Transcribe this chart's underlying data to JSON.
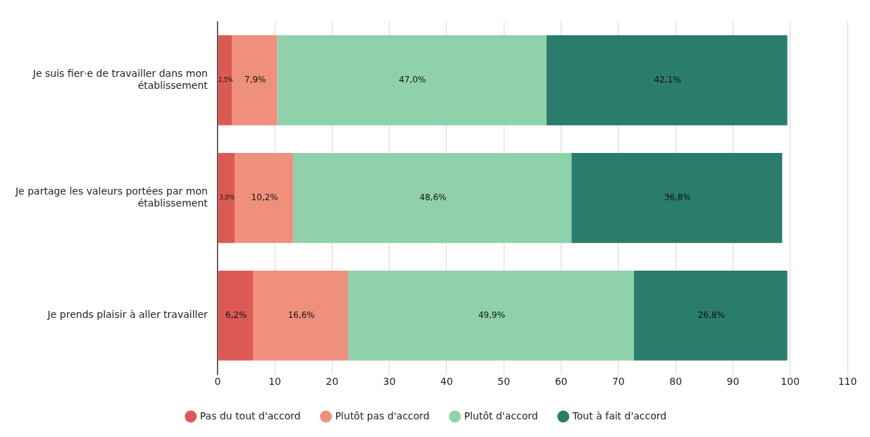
{
  "chart_data": {
    "type": "bar",
    "orientation": "horizontal",
    "stacked": true,
    "categories": [
      "Je suis fier·e de travailler dans mon établissement",
      "Je partage les valeurs portées par mon établissement",
      "Je prends plaisir à aller travailler"
    ],
    "series": [
      {
        "name": "Pas du tout d'accord",
        "color": "#db5a55",
        "values": [
          2.5,
          3.0,
          6.2
        ],
        "value_labels": [
          "2,5%",
          "3,0%",
          "6,2%"
        ]
      },
      {
        "name": "Plutôt pas d'accord",
        "color": "#ee907c",
        "values": [
          7.9,
          10.2,
          16.6
        ],
        "value_labels": [
          "7,9%",
          "10,2%",
          "16,6%"
        ]
      },
      {
        "name": "Plutôt d'accord",
        "color": "#8fd1aa",
        "values": [
          47.0,
          48.6,
          49.9
        ],
        "value_labels": [
          "47,0%",
          "48,6%",
          "49,9%"
        ]
      },
      {
        "name": "Tout à fait d'accord",
        "color": "#2a7c6c",
        "values": [
          42.1,
          36.8,
          26.8
        ],
        "value_labels": [
          "42,1%",
          "36,8%",
          "26,8%"
        ]
      }
    ],
    "xlim": [
      0,
      110
    ],
    "xticks": [
      0,
      10,
      20,
      30,
      40,
      50,
      60,
      70,
      80,
      90,
      100,
      110
    ],
    "grid": "x",
    "legend": "bottom",
    "marker": "circle"
  }
}
